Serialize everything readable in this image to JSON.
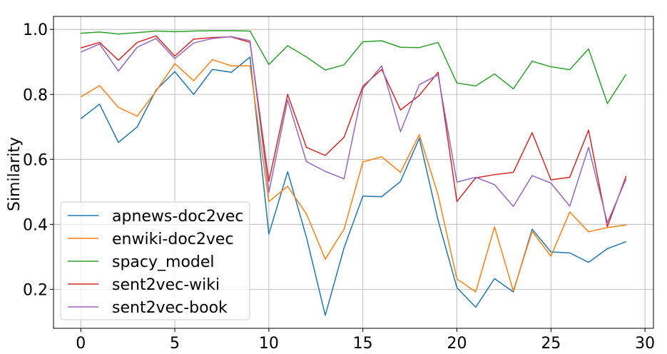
{
  "chart_data": {
    "type": "line",
    "title": "",
    "xlabel": "",
    "ylabel": "Similarity",
    "xlim": [
      -1.45,
      30.45
    ],
    "ylim": [
      0.08,
      1.04
    ],
    "grid": true,
    "legend_position": "lower-left",
    "x_ticks": [
      0,
      5,
      10,
      15,
      20,
      25,
      30
    ],
    "y_ticks": [
      0.2,
      0.4,
      0.6,
      0.8,
      1.0
    ],
    "x_tick_labels": [
      "0",
      "5",
      "10",
      "15",
      "20",
      "25",
      "30"
    ],
    "y_tick_labels": [
      "0.2",
      "0.4",
      "0.6",
      "0.8",
      "1.0"
    ],
    "x": [
      0,
      1,
      2,
      3,
      4,
      5,
      6,
      7,
      8,
      9,
      10,
      11,
      12,
      13,
      14,
      15,
      16,
      17,
      18,
      19,
      20,
      21,
      22,
      23,
      24,
      25,
      26,
      27,
      28,
      29
    ],
    "series": [
      {
        "name": "apnews-doc2vec",
        "color": "#1f77b4",
        "values": [
          0.725,
          0.77,
          0.652,
          0.7,
          0.813,
          0.87,
          0.8,
          0.877,
          0.868,
          0.915,
          0.37,
          0.562,
          0.36,
          0.12,
          0.328,
          0.487,
          0.485,
          0.532,
          0.665,
          0.412,
          0.205,
          0.145,
          0.233,
          0.192,
          0.385,
          0.315,
          0.312,
          0.283,
          0.325,
          0.347
        ]
      },
      {
        "name": "enwiki-doc2vec",
        "color": "#ff7f0e",
        "values": [
          0.792,
          0.827,
          0.76,
          0.733,
          0.81,
          0.895,
          0.842,
          0.907,
          0.888,
          0.888,
          0.47,
          0.517,
          0.432,
          0.293,
          0.385,
          0.592,
          0.608,
          0.56,
          0.676,
          0.49,
          0.232,
          0.192,
          0.392,
          0.195,
          0.378,
          0.302,
          0.438,
          0.377,
          0.39,
          0.398
        ]
      },
      {
        "name": "spacy_model",
        "color": "#2ca02c",
        "values": [
          0.988,
          0.992,
          0.986,
          0.99,
          0.995,
          0.993,
          0.995,
          0.996,
          0.996,
          0.995,
          0.892,
          0.95,
          0.915,
          0.875,
          0.891,
          0.962,
          0.965,
          0.945,
          0.944,
          0.96,
          0.835,
          0.826,
          0.863,
          0.817,
          0.902,
          0.885,
          0.876,
          0.94,
          0.772,
          0.862
        ]
      },
      {
        "name": "sent2vec-wiki",
        "color": "#d62728",
        "values": [
          0.943,
          0.96,
          0.905,
          0.96,
          0.98,
          0.918,
          0.97,
          0.975,
          0.977,
          0.96,
          0.532,
          0.8,
          0.637,
          0.612,
          0.668,
          0.825,
          0.877,
          0.752,
          0.797,
          0.868,
          0.47,
          0.543,
          0.553,
          0.56,
          0.682,
          0.537,
          0.545,
          0.69,
          0.393,
          0.549
        ]
      },
      {
        "name": "sent2vec-book",
        "color": "#9467bd",
        "values": [
          0.93,
          0.955,
          0.872,
          0.945,
          0.972,
          0.91,
          0.958,
          0.972,
          0.978,
          0.965,
          0.498,
          0.783,
          0.593,
          0.563,
          0.54,
          0.818,
          0.888,
          0.685,
          0.83,
          0.86,
          0.53,
          0.545,
          0.522,
          0.455,
          0.55,
          0.527,
          0.456,
          0.637,
          0.405,
          0.54
        ]
      }
    ]
  }
}
